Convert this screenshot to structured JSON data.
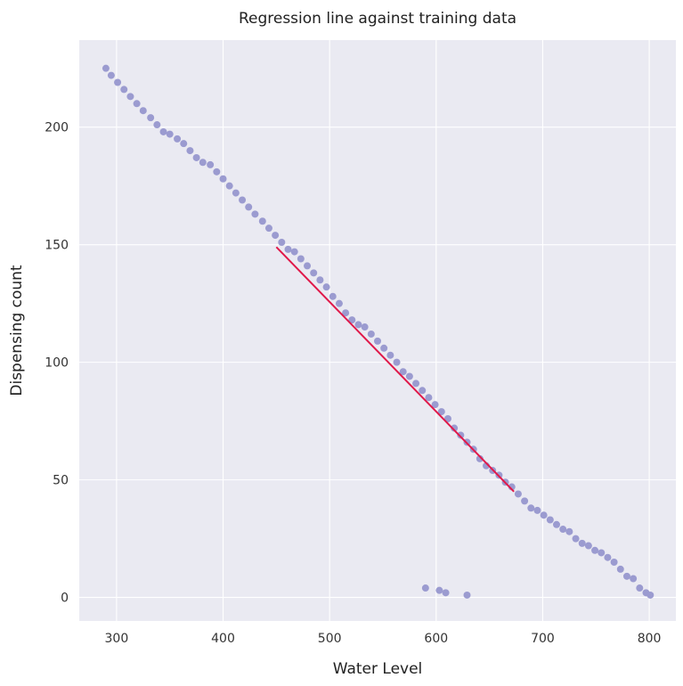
{
  "chart_data": {
    "type": "scatter",
    "title": "Regression line against training data",
    "xlabel": "Water Level",
    "ylabel": "Dispensing count",
    "xlim": [
      265,
      825
    ],
    "ylim": [
      -10,
      237
    ],
    "xticks": [
      300,
      400,
      500,
      600,
      700,
      800
    ],
    "yticks": [
      0,
      50,
      100,
      150,
      200
    ],
    "xtick_labels": [
      "300",
      "400",
      "500",
      "600",
      "700",
      "800"
    ],
    "ytick_labels": [
      "0",
      "50",
      "100",
      "150",
      "200"
    ],
    "grid": true,
    "colors": {
      "background": "#eaeaf2",
      "grid": "#ffffff",
      "points": "#9b9bd0",
      "line": "#e0194a"
    },
    "series": [
      {
        "type": "scatter",
        "x": [
          290,
          295,
          301,
          307,
          313,
          319,
          325,
          332,
          338,
          344,
          350,
          357,
          363,
          369,
          375,
          381,
          388,
          394,
          400,
          406,
          412,
          418,
          424,
          430,
          437,
          443,
          449,
          455,
          461,
          467,
          473,
          479,
          485,
          491,
          497,
          503,
          509,
          515,
          521,
          527,
          533,
          539,
          545,
          551,
          557,
          563,
          569,
          575,
          581,
          587,
          593,
          599,
          605,
          611,
          617,
          623,
          629,
          635,
          641,
          647,
          653,
          659,
          665,
          671,
          677,
          683,
          689,
          695,
          701,
          707,
          713,
          719,
          725,
          731,
          737,
          743,
          749,
          755,
          761,
          767,
          773,
          779,
          785,
          791,
          797,
          801,
          590,
          603,
          609,
          629
        ],
        "y": [
          225,
          222,
          219,
          216,
          213,
          210,
          207,
          204,
          201,
          198,
          197,
          195,
          193,
          190,
          187,
          185,
          184,
          181,
          178,
          175,
          172,
          169,
          166,
          163,
          160,
          157,
          154,
          151,
          148,
          147,
          144,
          141,
          138,
          135,
          132,
          128,
          125,
          121,
          118,
          116,
          115,
          112,
          109,
          106,
          103,
          100,
          96,
          94,
          91,
          88,
          85,
          82,
          79,
          76,
          72,
          69,
          66,
          63,
          59,
          56,
          54,
          52,
          49,
          47,
          44,
          41,
          38,
          37,
          35,
          33,
          31,
          29,
          28,
          25,
          23,
          22,
          20,
          19,
          17,
          15,
          12,
          9,
          8,
          4,
          2,
          1,
          4,
          3,
          2,
          1
        ]
      },
      {
        "type": "line",
        "x": [
          450,
          673
        ],
        "y": [
          149,
          45
        ]
      }
    ]
  }
}
